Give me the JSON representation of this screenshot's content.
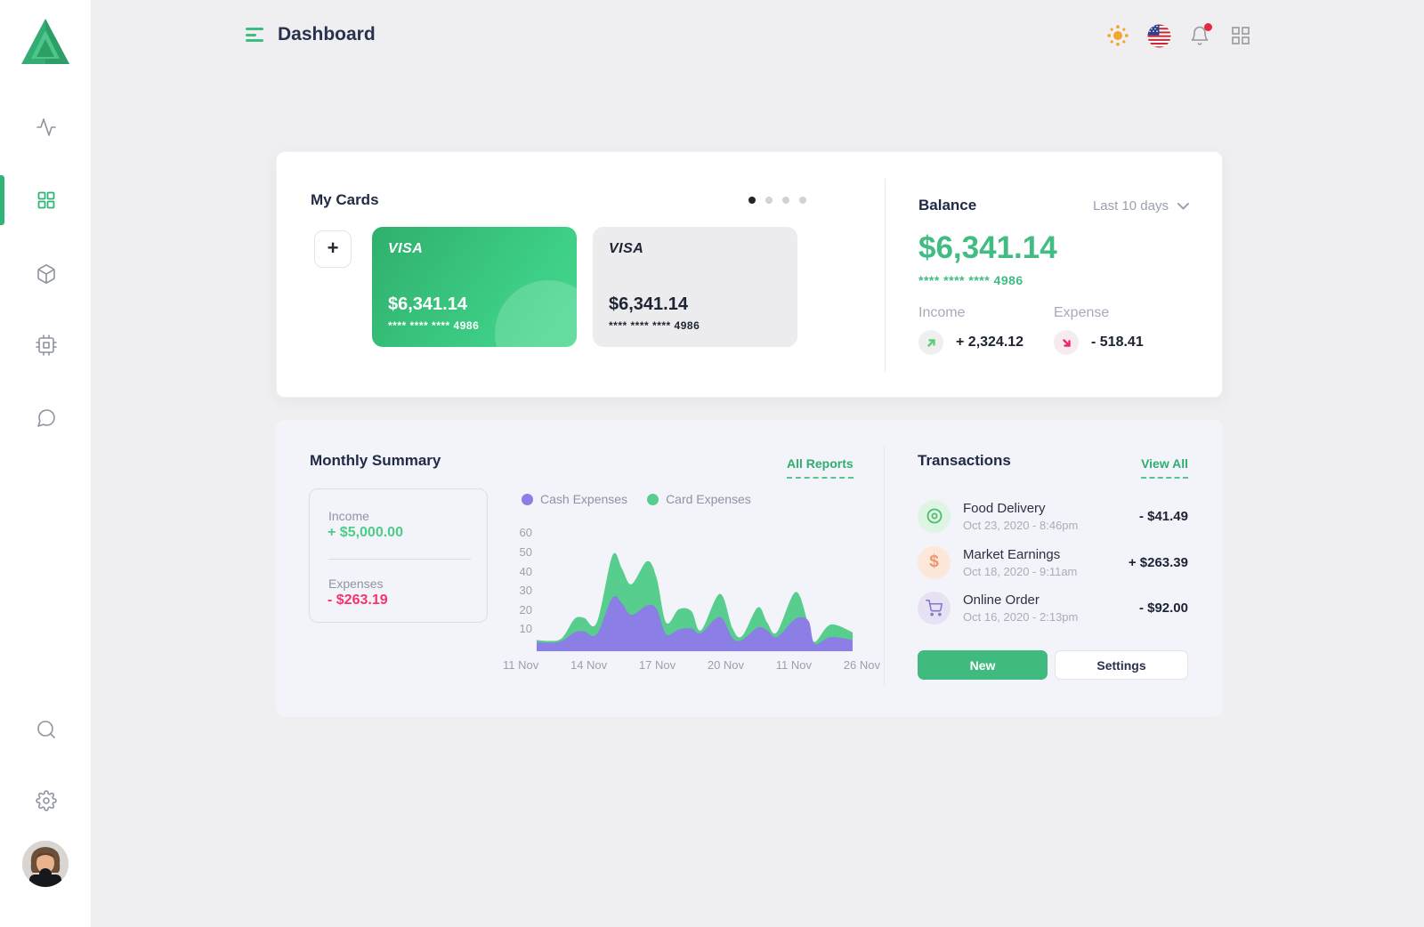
{
  "header": {
    "title": "Dashboard",
    "icons": [
      "sun-icon",
      "us-flag-icon",
      "bell-icon",
      "apps-grid-icon"
    ]
  },
  "sidebar": {
    "items": [
      "activity",
      "dashboard",
      "products",
      "system",
      "messages",
      "search",
      "settings"
    ],
    "active_item": "dashboard"
  },
  "cards_panel": {
    "title": "My Cards",
    "add_label": "+",
    "cards": [
      {
        "brand": "VISA",
        "balance": "$6,341.14",
        "number": "**** **** **** 4986",
        "style": "green"
      },
      {
        "brand": "VISA",
        "balance": "$6,341.14",
        "number": "**** **** **** 4986",
        "style": "gray"
      }
    ],
    "dots_count": 4,
    "active_dot": 0
  },
  "balance": {
    "title": "Balance",
    "filter_label": "Last  10 days",
    "amount": "$6,341.14",
    "card_number": "**** **** **** 4986",
    "income_label": "Income",
    "income_value": "+ 2,324.12",
    "expense_label": "Expense",
    "expense_value": "- 518.41"
  },
  "summary": {
    "title": "Monthly Summary",
    "link_label": "All Reports",
    "income_label": "Income",
    "income_value": "+ $5,000.00",
    "expenses_label": "Expenses",
    "expenses_value": "- $263.19"
  },
  "chart_data": {
    "type": "area",
    "title": "Monthly Summary expenses chart",
    "ylim": [
      0,
      60
    ],
    "y_ticks": [
      60,
      50,
      40,
      30,
      20,
      10
    ],
    "x_ticks": [
      "11 Nov",
      "14 Nov",
      "17 Nov",
      "20 Nov",
      "11 Nov",
      "26 Nov"
    ],
    "grid": false,
    "legend_position": "top",
    "series": [
      {
        "name": "Cash Expenses",
        "color": "#8b7ee4",
        "points": [
          [
            0,
            3
          ],
          [
            4,
            2.5
          ],
          [
            8,
            3.5
          ],
          [
            12,
            8
          ],
          [
            15,
            8.5
          ],
          [
            19,
            7
          ],
          [
            24,
            26
          ],
          [
            27,
            23
          ],
          [
            30,
            17
          ],
          [
            35,
            22
          ],
          [
            38,
            20
          ],
          [
            41,
            7
          ],
          [
            45,
            9.5
          ],
          [
            49,
            10
          ],
          [
            52,
            7.5
          ],
          [
            58,
            16
          ],
          [
            62,
            5
          ],
          [
            65,
            4
          ],
          [
            70,
            10.5
          ],
          [
            73,
            9
          ],
          [
            76,
            5.5
          ],
          [
            82,
            15
          ],
          [
            86,
            14
          ],
          [
            88,
            2
          ],
          [
            93,
            5.5
          ],
          [
            100,
            4
          ]
        ]
      },
      {
        "name": "Card Expenses",
        "color": "#57cd8e",
        "points": [
          [
            0,
            4
          ],
          [
            4,
            3.5
          ],
          [
            8,
            5
          ],
          [
            12,
            15
          ],
          [
            15,
            15.5
          ],
          [
            19,
            13
          ],
          [
            24,
            48
          ],
          [
            27,
            41
          ],
          [
            30,
            33
          ],
          [
            35,
            45
          ],
          [
            38,
            36
          ],
          [
            41,
            13
          ],
          [
            45,
            20
          ],
          [
            49,
            19
          ],
          [
            52,
            9
          ],
          [
            58,
            28
          ],
          [
            62,
            10
          ],
          [
            65,
            6
          ],
          [
            70,
            21
          ],
          [
            73,
            13
          ],
          [
            76,
            8
          ],
          [
            82,
            29
          ],
          [
            86,
            12
          ],
          [
            88,
            3
          ],
          [
            93,
            12
          ],
          [
            100,
            8
          ]
        ]
      }
    ]
  },
  "transactions": {
    "title": "Transactions",
    "link_label": "View All",
    "items": [
      {
        "icon": "food-delivery-icon",
        "name": "Food Delivery",
        "date": "Oct 23, 2020 - 8:46pm",
        "amount": "- $41.49"
      },
      {
        "icon": "dollar-icon",
        "name": "Market Earnings",
        "date": "Oct 18, 2020 - 9:11am",
        "amount": "+ $263.39"
      },
      {
        "icon": "cart-icon",
        "name": "Online Order",
        "date": "Oct 16, 2020 - 2:13pm",
        "amount": "- $92.00"
      }
    ],
    "dollar_glyph": "$",
    "new_label": "New",
    "settings_label": "Settings"
  },
  "colors": {
    "primary_green": "#3bb77e",
    "balance_green": "#41bc82",
    "expense_red": "#f4346c",
    "heading_navy": "#222b45",
    "muted_gray": "#9aa1ad",
    "page_background": "#efeff1",
    "summary_background": "#f3f4f9"
  }
}
